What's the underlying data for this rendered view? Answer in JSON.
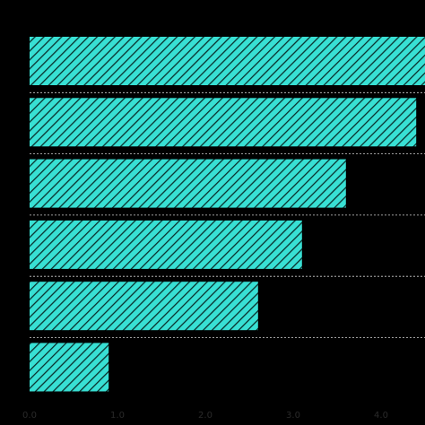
{
  "chart_data": {
    "type": "bar",
    "orientation": "horizontal",
    "title": "",
    "xlabel": "",
    "ylabel": "",
    "categories": [
      "",
      "",
      "",
      "",
      "",
      ""
    ],
    "values": [
      4.5,
      4.4,
      3.6,
      3.1,
      2.6,
      0.9
    ],
    "xlim": [
      0,
      4.5
    ],
    "x_ticks": [
      "0.0",
      "1.0",
      "2.0",
      "3.0",
      "4.0"
    ],
    "grid": false,
    "colors": {
      "background": "#000000",
      "bar_fill": "#38e0d4",
      "bar_hatch": "#0a2f2c",
      "separator": "#cfcfcf",
      "text": "#2a2a2a"
    }
  }
}
